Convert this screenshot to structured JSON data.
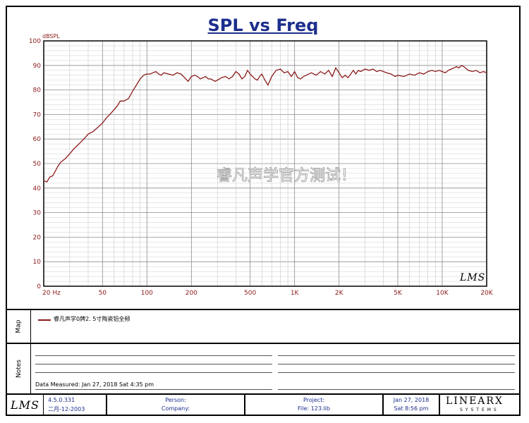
{
  "chart_data": {
    "type": "line",
    "title": "SPL vs Freq",
    "ylabel": "dBSPL",
    "xscale": "log",
    "xlim": [
      20,
      20000
    ],
    "ylim": [
      0,
      100
    ],
    "grid": true,
    "y_ticks": [
      0,
      10,
      20,
      30,
      40,
      50,
      60,
      70,
      80,
      90,
      100
    ],
    "x_ticks": [
      {
        "value": 20,
        "label": "20  Hz"
      },
      {
        "value": 50,
        "label": "50"
      },
      {
        "value": 100,
        "label": "100"
      },
      {
        "value": 200,
        "label": "200"
      },
      {
        "value": 500,
        "label": "500"
      },
      {
        "value": 1000,
        "label": "1K"
      },
      {
        "value": 2000,
        "label": "2K"
      },
      {
        "value": 5000,
        "label": "5K"
      },
      {
        "value": 10000,
        "label": "10K"
      },
      {
        "value": 20000,
        "label": "20K"
      }
    ],
    "series": [
      {
        "name": "睿凡声学0牌2. 5寸陶瓷铝全频",
        "color": "#8b1a1a",
        "x": [
          20,
          21,
          22,
          23,
          24,
          25,
          26,
          28,
          30,
          32,
          34,
          36,
          38,
          40,
          43,
          46,
          50,
          53,
          56,
          60,
          63,
          66,
          70,
          75,
          80,
          85,
          90,
          95,
          100,
          105,
          110,
          115,
          120,
          125,
          130,
          140,
          150,
          160,
          170,
          180,
          190,
          200,
          210,
          220,
          230,
          240,
          250,
          260,
          270,
          280,
          290,
          300,
          320,
          340,
          360,
          380,
          400,
          420,
          440,
          460,
          480,
          500,
          520,
          540,
          560,
          580,
          600,
          630,
          660,
          700,
          750,
          800,
          850,
          900,
          950,
          1000,
          1050,
          1100,
          1150,
          1200,
          1300,
          1400,
          1500,
          1600,
          1700,
          1800,
          1900,
          2000,
          2100,
          2200,
          2300,
          2400,
          2500,
          2600,
          2700,
          2800,
          3000,
          3200,
          3400,
          3600,
          3800,
          4000,
          4200,
          4500,
          4800,
          5000,
          5500,
          6000,
          6500,
          7000,
          7500,
          8000,
          8500,
          9000,
          9500,
          10000,
          10500,
          11000,
          11500,
          12000,
          12500,
          13000,
          13500,
          14000,
          15000,
          16000,
          17000,
          18000,
          19000,
          20000
        ],
        "y": [
          43,
          42.5,
          44.5,
          45,
          47,
          49,
          50.5,
          52,
          54,
          56,
          57.5,
          59,
          60.5,
          62,
          63,
          64.5,
          66.5,
          68.5,
          70,
          72,
          73.5,
          75.5,
          75.5,
          76.5,
          79.5,
          82,
          84.5,
          86,
          86.5,
          86.5,
          87,
          87.5,
          86.5,
          86,
          87,
          86.5,
          86,
          87,
          86.5,
          85,
          83.5,
          85.5,
          86,
          85.5,
          84.5,
          85,
          85.5,
          84.5,
          84.5,
          84,
          83.5,
          84,
          85,
          85.5,
          84.5,
          85.5,
          87.5,
          86.5,
          84.5,
          85.5,
          88,
          86.5,
          85.5,
          84.5,
          84,
          85.5,
          86.5,
          84,
          82,
          85.5,
          88,
          88.5,
          87,
          87.5,
          85.5,
          87.5,
          85,
          84.5,
          85.5,
          86,
          87,
          86,
          87.5,
          86.5,
          88,
          85.5,
          89,
          87,
          85,
          86,
          85,
          86.5,
          88,
          86.5,
          88,
          87.5,
          88.5,
          88,
          88.5,
          87.5,
          88,
          87.5,
          87,
          86.5,
          85.5,
          86,
          85.5,
          86.5,
          86,
          87,
          86.5,
          87.5,
          88,
          87.5,
          88,
          87.5,
          87,
          88,
          88.5,
          89,
          89.5,
          89,
          90,
          89.5,
          88,
          87.5,
          88,
          87,
          87.5,
          87
        ]
      }
    ]
  },
  "watermark": "睿凡声学官方测试！",
  "plot_logo": "LMS",
  "map": {
    "label": "Map"
  },
  "notes": {
    "label": "Notes",
    "data_measured": "Data Measured: Jan 27, 2018  Sat  4:35 pm"
  },
  "footer": {
    "logo": "LMS",
    "version": "4.5.0.331",
    "version_date": "二月-12-2003",
    "person_label": "Person:",
    "company_label": "Company:",
    "project_label": "Project:",
    "file_label": "File: 123.lib",
    "date": "Jan 27, 2018",
    "date_time": "Sat  8:56 pm",
    "brand_main": "LINEARX",
    "brand_sub": "SYSTEMS"
  }
}
